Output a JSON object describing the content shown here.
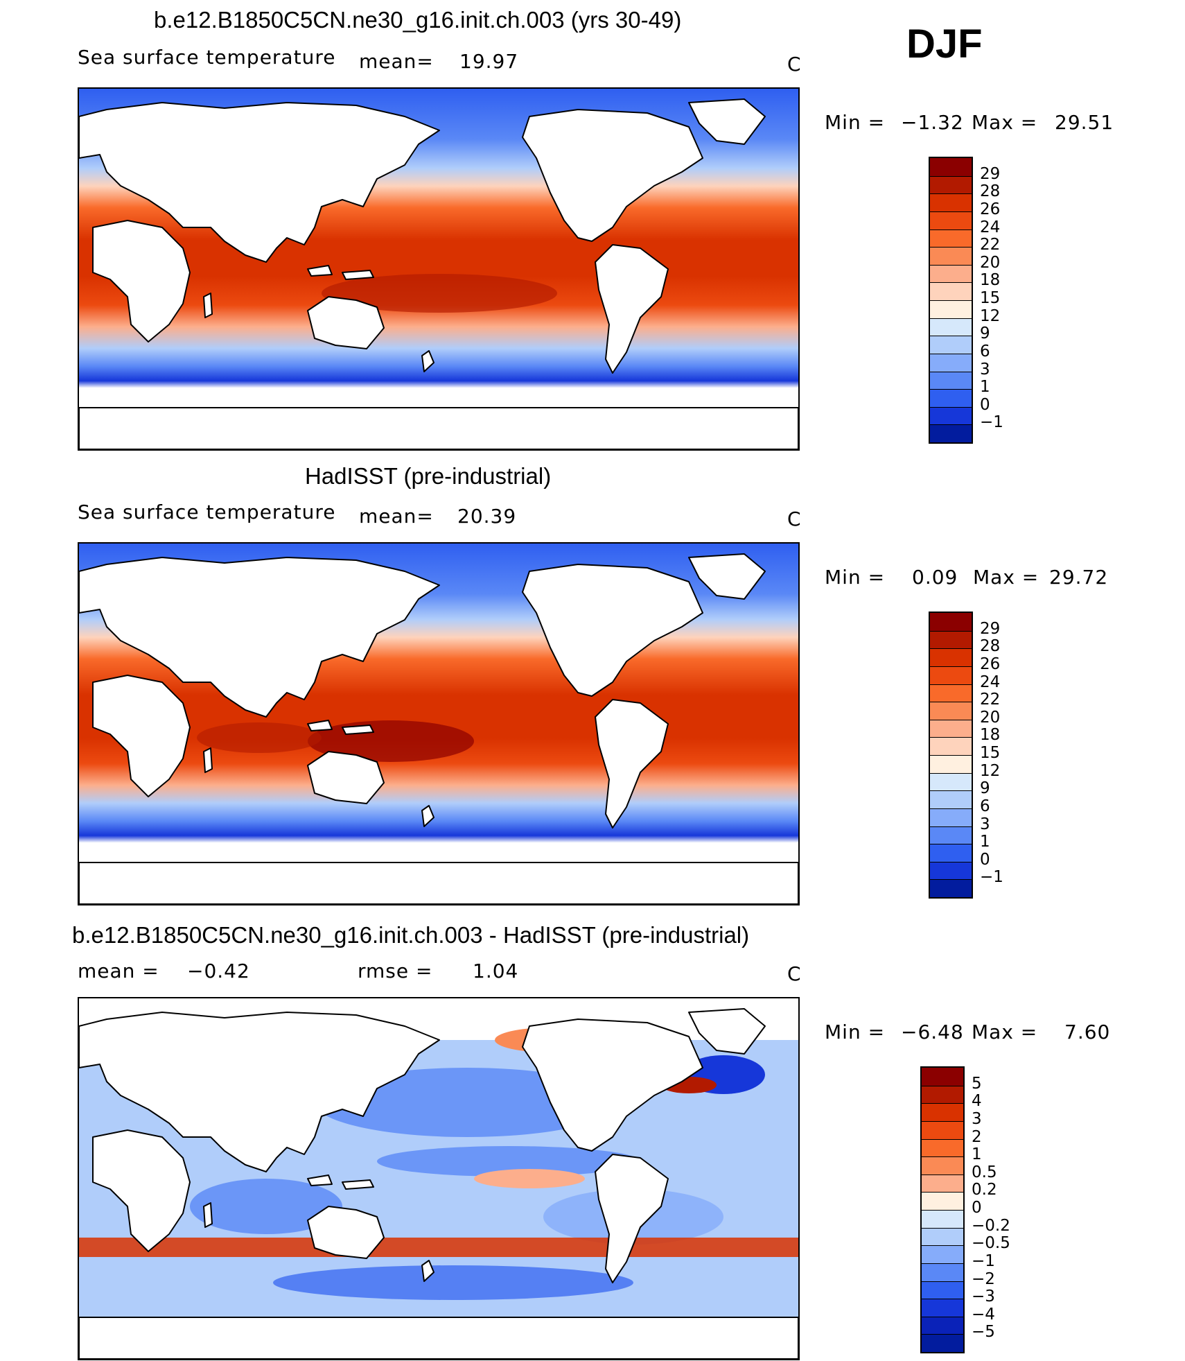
{
  "header": {
    "season": "DJF"
  },
  "panels": [
    {
      "title": "b.e12.B1850C5CN.ne30_g16.init.ch.003 (yrs 30-49)",
      "subtitle_left": "Sea surface temperature",
      "stat1_label": "mean=",
      "stat1_value": "19.97",
      "stat2_label": "",
      "stat2_value": "",
      "units": "C",
      "min_label": "Min =",
      "min_value": "−1.32",
      "max_label": "Max =",
      "max_value": "29.51",
      "kind": "model"
    },
    {
      "title": "HadISST (pre-industrial)",
      "subtitle_left": "Sea surface temperature",
      "stat1_label": "mean=",
      "stat1_value": "20.39",
      "stat2_label": "",
      "stat2_value": "",
      "units": "C",
      "min_label": "Min =",
      "min_value": "0.09",
      "max_label": "Max =",
      "max_value": "29.72",
      "kind": "obs"
    },
    {
      "title": "b.e12.B1850C5CN.ne30_g16.init.ch.003 - HadISST (pre-industrial)",
      "subtitle_left": "",
      "stat1_label": "mean =",
      "stat1_value": "−0.42",
      "stat2_label": "rmse =",
      "stat2_value": "1.04",
      "units": "C",
      "min_label": "Min =",
      "min_value": "−6.48",
      "max_label": "Max =",
      "max_value": "7.60",
      "kind": "diff"
    }
  ],
  "colorbars": {
    "sst": {
      "labels": [
        "29",
        "28",
        "26",
        "24",
        "22",
        "20",
        "18",
        "15",
        "12",
        "9",
        "6",
        "3",
        "1",
        "0",
        "−1"
      ],
      "colors": [
        "#8b0000",
        "#b21a00",
        "#d93200",
        "#ec4a10",
        "#f96a2a",
        "#fa8a55",
        "#fcae8c",
        "#fed3bc",
        "#fff0e0",
        "#d6e8fb",
        "#b0cdfa",
        "#86acfa",
        "#5a88f6",
        "#2f5ff0",
        "#1637d9",
        "#021c9e"
      ]
    },
    "diff": {
      "labels": [
        "5",
        "4",
        "3",
        "2",
        "1",
        "0.5",
        "0.2",
        "0",
        "−0.2",
        "−0.5",
        "−1",
        "−2",
        "−3",
        "−4",
        "−5"
      ],
      "colors": [
        "#8b0000",
        "#b21a00",
        "#d93200",
        "#ec4a10",
        "#f96a2a",
        "#fa8a55",
        "#fcae8c",
        "#fff0e0",
        "#d6e8fb",
        "#b0cdfa",
        "#86acfa",
        "#5a88f6",
        "#2f5ff0",
        "#1637d9",
        "#0a22b8",
        "#021c9e"
      ]
    }
  }
}
